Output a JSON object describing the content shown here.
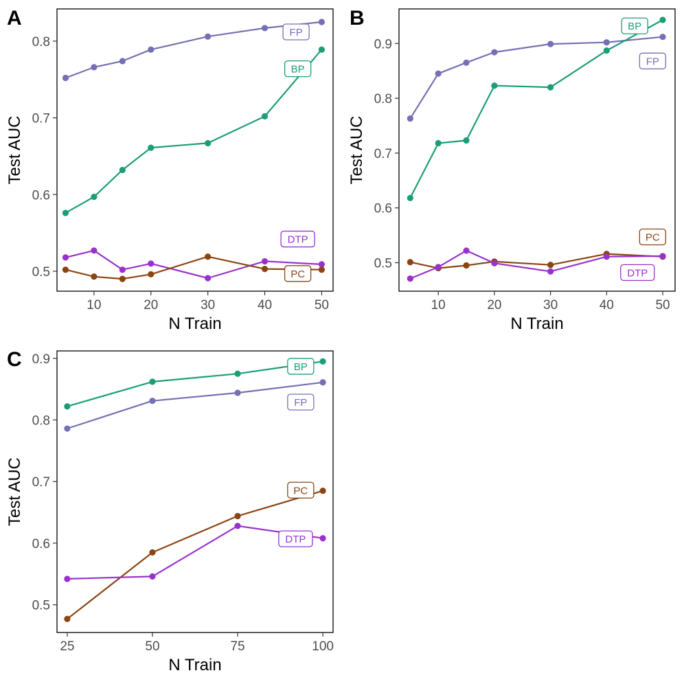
{
  "colors": {
    "BP": "#1b9e77",
    "FP": "#7570b3",
    "PC": "#8b4513",
    "DTP": "#9932cc"
  },
  "chart_data": [
    {
      "panel": "A",
      "type": "line",
      "xlabel": "N Train",
      "ylabel": "Test AUC",
      "xlim": [
        3.5,
        52
      ],
      "ylim": [
        0.474,
        0.842
      ],
      "xticks": [
        10,
        20,
        30,
        40,
        50
      ],
      "yticks": [
        0.5,
        0.6,
        0.7,
        0.8
      ],
      "x": [
        5,
        10,
        15,
        20,
        30,
        40,
        50
      ],
      "series": [
        {
          "name": "FP",
          "values": [
            0.752,
            0.766,
            0.774,
            0.789,
            0.806,
            0.817,
            0.825
          ]
        },
        {
          "name": "BP",
          "values": [
            0.576,
            0.597,
            0.632,
            0.661,
            0.667,
            0.702,
            0.789
          ]
        },
        {
          "name": "DTP",
          "values": [
            0.518,
            0.527,
            0.502,
            0.51,
            0.491,
            0.513,
            0.509
          ]
        },
        {
          "name": "PC",
          "values": [
            0.502,
            0.493,
            0.49,
            0.496,
            0.519,
            0.503,
            0.502
          ]
        }
      ],
      "labels": [
        {
          "series": "FP",
          "x": 45.5,
          "y": 0.812
        },
        {
          "series": "BP",
          "x": 45.8,
          "y": 0.764
        },
        {
          "series": "DTP",
          "x": 45.8,
          "y": 0.542
        },
        {
          "series": "PC",
          "x": 45.8,
          "y": 0.497
        }
      ]
    },
    {
      "panel": "B",
      "type": "line",
      "xlabel": "N Train",
      "ylabel": "Test AUC",
      "xlim": [
        3,
        52.2
      ],
      "ylim": [
        0.448,
        0.963
      ],
      "xticks": [
        10,
        20,
        30,
        40,
        50
      ],
      "yticks": [
        0.5,
        0.6,
        0.7,
        0.8,
        0.9
      ],
      "x": [
        5,
        10,
        15,
        20,
        30,
        40,
        50
      ],
      "series": [
        {
          "name": "FP",
          "values": [
            0.763,
            0.845,
            0.865,
            0.884,
            0.899,
            0.902,
            0.912
          ]
        },
        {
          "name": "BP",
          "values": [
            0.618,
            0.718,
            0.723,
            0.823,
            0.82,
            0.887,
            0.943
          ]
        },
        {
          "name": "PC",
          "values": [
            0.501,
            0.49,
            0.495,
            0.502,
            0.496,
            0.516,
            0.511
          ]
        },
        {
          "name": "DTP",
          "values": [
            0.471,
            0.492,
            0.522,
            0.499,
            0.484,
            0.511,
            0.512
          ]
        }
      ],
      "labels": [
        {
          "series": "BP",
          "x": 45,
          "y": 0.932
        },
        {
          "series": "FP",
          "x": 48.2,
          "y": 0.868
        },
        {
          "series": "PC",
          "x": 48.2,
          "y": 0.547
        },
        {
          "series": "DTP",
          "x": 45.5,
          "y": 0.482
        }
      ]
    },
    {
      "panel": "C",
      "type": "line",
      "xlabel": "N Train",
      "ylabel": "Test AUC",
      "xlim": [
        22,
        103
      ],
      "ylim": [
        0.455,
        0.912
      ],
      "xticks": [
        25,
        50,
        75,
        100
      ],
      "yticks": [
        0.5,
        0.6,
        0.7,
        0.8,
        0.9
      ],
      "x": [
        25,
        50,
        75,
        100
      ],
      "series": [
        {
          "name": "BP",
          "values": [
            0.822,
            0.862,
            0.875,
            0.895
          ]
        },
        {
          "name": "FP",
          "values": [
            0.786,
            0.831,
            0.844,
            0.861
          ]
        },
        {
          "name": "PC",
          "values": [
            0.477,
            0.585,
            0.644,
            0.685
          ]
        },
        {
          "name": "DTP",
          "values": [
            0.542,
            0.546,
            0.628,
            0.608
          ]
        }
      ],
      "labels": [
        {
          "series": "BP",
          "x": 93.5,
          "y": 0.887
        },
        {
          "series": "FP",
          "x": 93.5,
          "y": 0.829
        },
        {
          "series": "PC",
          "x": 93.5,
          "y": 0.686
        },
        {
          "series": "DTP",
          "x": 92,
          "y": 0.607
        }
      ]
    }
  ]
}
